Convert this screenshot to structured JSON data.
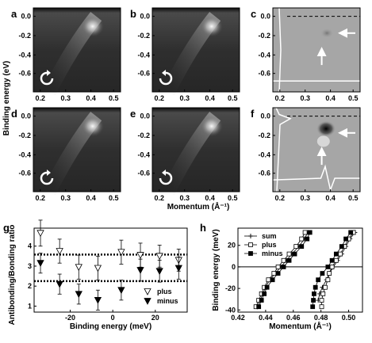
{
  "figure": {
    "panels": [
      {
        "letter": "a",
        "kind": "arpes",
        "rotation": "clockwise"
      },
      {
        "letter": "b",
        "kind": "arpes",
        "rotation": "counterclockwise"
      },
      {
        "letter": "c",
        "kind": "difference"
      },
      {
        "letter": "d",
        "kind": "arpes",
        "rotation": "clockwise"
      },
      {
        "letter": "e",
        "kind": "arpes",
        "rotation": "counterclockwise"
      },
      {
        "letter": "f",
        "kind": "difference"
      }
    ],
    "image_ylabel": "Binding energy (eV)",
    "image_xlabel": "Momentum (Å⁻¹)",
    "image_yticks": [
      "0.0",
      "-0.2",
      "-0.4",
      "-0.6"
    ],
    "image_xticks": [
      "0.2",
      "0.3",
      "0.4",
      "0.5"
    ],
    "arrow_color": "#ffffff"
  },
  "chart_data": [
    {
      "panel": "g",
      "type": "scatter",
      "xlabel": "Binding energy (meV)",
      "ylabel": "Antibonding/Bonding ratio",
      "xlim": [
        -37,
        35
      ],
      "ylim": [
        0.7,
        4.9
      ],
      "xticks": [
        "-20",
        "0",
        "20"
      ],
      "yticks": [
        "1",
        "2",
        "3",
        "4"
      ],
      "reference_lines": [
        3.58,
        2.25
      ],
      "series": [
        {
          "name": "plus",
          "marker": "open-triangle-down",
          "x": [
            -34,
            -25,
            -16,
            -7,
            4,
            13,
            22,
            31
          ],
          "y": [
            4.65,
            3.75,
            2.95,
            2.9,
            3.7,
            3.55,
            3.5,
            3.3
          ],
          "err": [
            0.65,
            0.6,
            0.6,
            0.6,
            0.6,
            0.6,
            0.55,
            0.55
          ]
        },
        {
          "name": "minus",
          "marker": "filled-triangle-down",
          "x": [
            -34,
            -25,
            -16,
            -7,
            4,
            13,
            22,
            31
          ],
          "y": [
            3.15,
            2.1,
            1.6,
            1.3,
            1.8,
            2.8,
            2.75,
            2.9
          ],
          "err": [
            0.5,
            0.5,
            0.5,
            0.5,
            0.5,
            0.55,
            0.55,
            0.55
          ]
        }
      ],
      "legend_position": "bottom-right"
    },
    {
      "panel": "h",
      "type": "line",
      "xlabel": "Momentum (Å⁻¹)",
      "ylabel": "Binding energy (meV)",
      "xlim": [
        0.42,
        0.51
      ],
      "ylim": [
        -42,
        36
      ],
      "xticks": [
        "0.42",
        "0.44",
        "0.46",
        "0.48",
        "0.50"
      ],
      "yticks": [
        "-40",
        "-20",
        "0",
        "20"
      ],
      "reference_lines": [
        0
      ],
      "series": [
        {
          "name": "sum",
          "marker": "plus",
          "branches": [
            {
              "x": [
                0.4705,
                0.468,
                0.464,
                0.459,
                0.455,
                0.451,
                0.447,
                0.443,
                0.44,
                0.438,
                0.436,
                0.434
              ],
              "y": [
                32,
                26,
                19,
                12,
                6,
                0,
                -6,
                -12,
                -19,
                -25,
                -31,
                -37
              ]
            },
            {
              "x": [
                0.5045,
                0.501,
                0.498,
                0.495,
                0.492,
                0.489,
                0.486,
                0.484,
                0.481,
                0.479,
                0.478
              ],
              "y": [
                32,
                26,
                19,
                12,
                6,
                0,
                -6,
                -12,
                -19,
                -25,
                -31
              ]
            }
          ]
        },
        {
          "name": "plus",
          "marker": "open-square",
          "branches": [
            {
              "x": [
                0.4685,
                0.466,
                0.462,
                0.457,
                0.453,
                0.449,
                0.446,
                0.442,
                0.439,
                0.437,
                0.435,
                0.433
              ],
              "y": [
                32,
                26,
                19,
                12,
                6,
                0,
                -6,
                -12,
                -19,
                -25,
                -31,
                -37
              ]
            },
            {
              "x": [
                0.5035,
                0.5,
                0.497,
                0.494,
                0.491,
                0.488,
                0.486,
                0.485,
                0.483,
                0.4815,
                0.4805,
                0.4805
              ],
              "y": [
                32,
                26,
                19,
                12,
                6,
                0,
                -6,
                -12,
                -19,
                -25,
                -31,
                -37
              ]
            }
          ]
        },
        {
          "name": "minus",
          "marker": "filled-square",
          "branches": [
            {
              "x": [
                0.472,
                0.47,
                0.466,
                0.461,
                0.457,
                0.453,
                0.449,
                0.445,
                0.441,
                0.439,
                0.437,
                0.435
              ],
              "y": [
                32,
                26,
                19,
                12,
                6,
                0,
                -6,
                -12,
                -19,
                -25,
                -31,
                -37
              ]
            },
            {
              "x": [
                0.5015,
                0.498,
                0.495,
                0.491,
                0.488,
                0.485,
                0.481,
                0.478,
                0.476,
                0.475,
                0.4745,
                0.474
              ],
              "y": [
                32,
                26,
                19,
                12,
                6,
                0,
                -6,
                -12,
                -19,
                -25,
                -31,
                -37
              ]
            }
          ]
        }
      ],
      "legend_position": "top-left"
    }
  ]
}
